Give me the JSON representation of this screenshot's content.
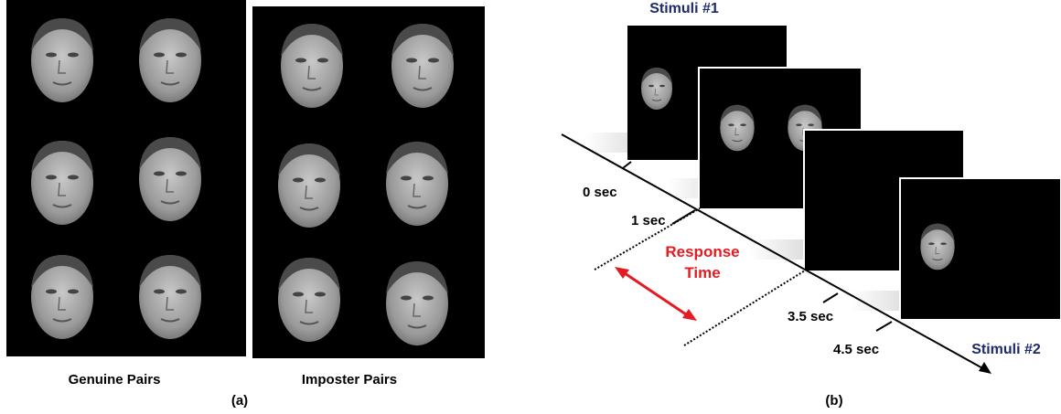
{
  "panel_a": {
    "genuine_label": "Genuine Pairs",
    "imposter_label": "Imposter Pairs",
    "caption": "(a)"
  },
  "panel_b": {
    "stimuli_1": "Stimuli #1",
    "stimuli_2": "Stimuli #2",
    "time_labels": [
      "0 sec",
      "1 sec",
      "3.5 sec",
      "4.5 sec"
    ],
    "response_lines": [
      "Response",
      "Time"
    ],
    "caption": "(b)"
  }
}
